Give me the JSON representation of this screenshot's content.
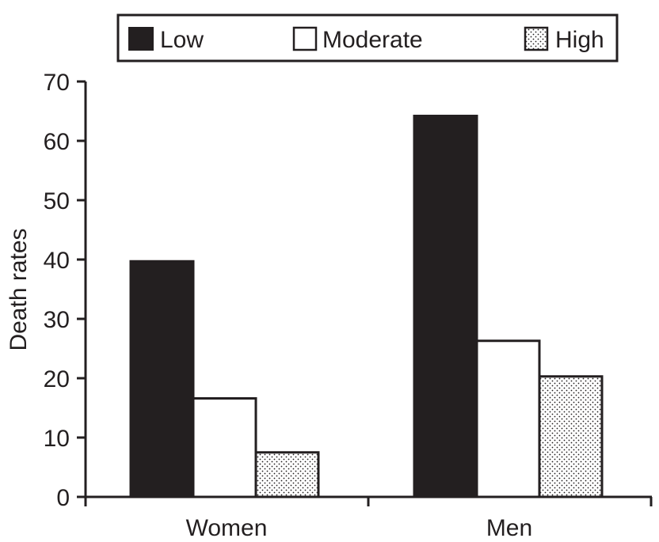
{
  "chart_data": {
    "type": "bar",
    "title": "",
    "xlabel": "",
    "ylabel": "Death rates",
    "ylim": [
      0,
      70
    ],
    "yticks": [
      0,
      10,
      20,
      30,
      40,
      50,
      60,
      70
    ],
    "grid": false,
    "legend_position": "top",
    "categories": [
      "Women",
      "Men"
    ],
    "series": [
      {
        "name": "Low",
        "values": [
          39.7,
          64.2
        ],
        "fill": "solid-black"
      },
      {
        "name": "Moderate",
        "values": [
          16.6,
          26.3
        ],
        "fill": "white"
      },
      {
        "name": "High",
        "values": [
          7.5,
          20.3
        ],
        "fill": "dotted"
      }
    ]
  },
  "colors": {
    "ink": "#231f20",
    "background": "#ffffff"
  }
}
